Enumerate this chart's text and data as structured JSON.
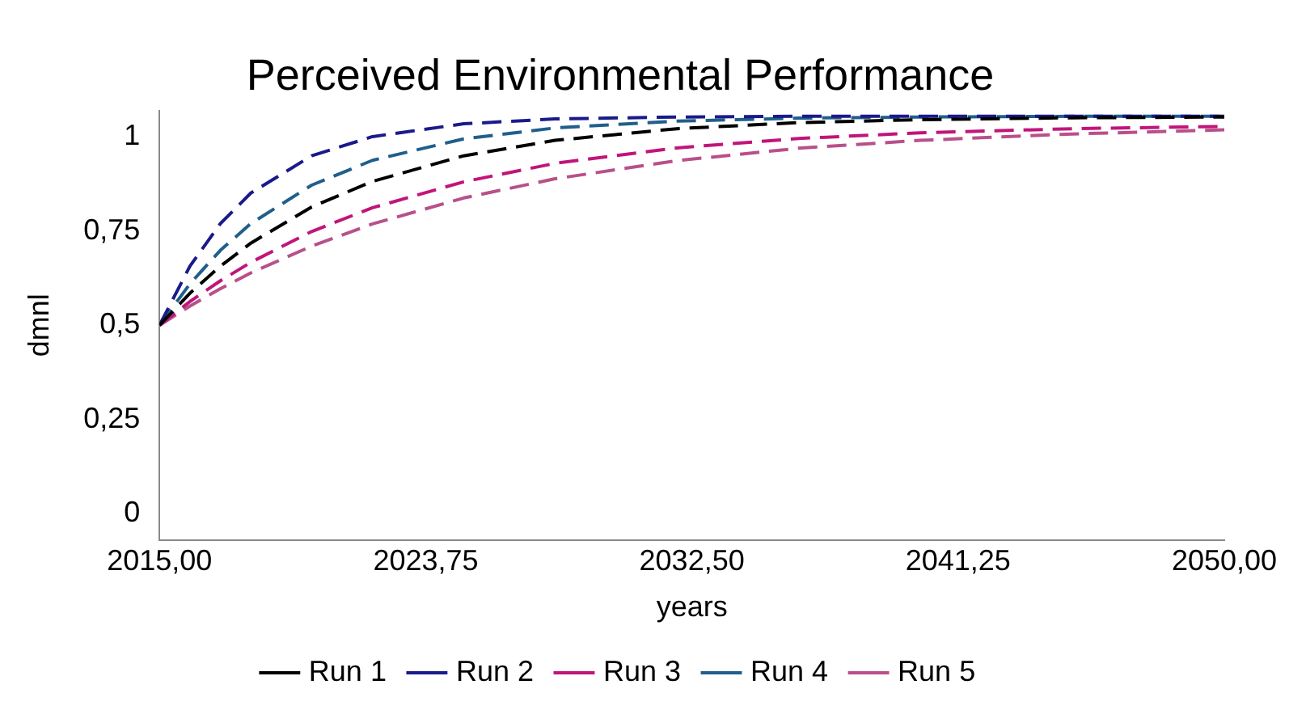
{
  "chart_data": {
    "type": "line",
    "title": "Perceived Environmental Performance",
    "xlabel": "years",
    "ylabel": "dmnl",
    "x": [
      2015,
      2016,
      2017,
      2018,
      2020,
      2022,
      2025,
      2028,
      2032,
      2036,
      2040,
      2045,
      2050
    ],
    "series": [
      {
        "name": "Run 1",
        "color": "#000000",
        "values": [
          0.5,
          0.585,
          0.657,
          0.718,
          0.814,
          0.882,
          0.95,
          0.991,
          1.022,
          1.038,
          1.046,
          1.051,
          1.053
        ]
      },
      {
        "name": "Run 2",
        "color": "#1a1a8c",
        "values": [
          0.5,
          0.657,
          0.77,
          0.851,
          0.95,
          1.001,
          1.035,
          1.048,
          1.053,
          1.055,
          1.055,
          1.055,
          1.055
        ]
      },
      {
        "name": "Run 3",
        "color": "#c0157a",
        "values": [
          0.5,
          0.563,
          0.618,
          0.667,
          0.749,
          0.812,
          0.881,
          0.93,
          0.971,
          0.996,
          1.011,
          1.022,
          1.028
        ]
      },
      {
        "name": "Run 4",
        "color": "#1f5f8b",
        "values": [
          0.5,
          0.61,
          0.699,
          0.77,
          0.872,
          0.938,
          0.995,
          1.024,
          1.042,
          1.05,
          1.053,
          1.055,
          1.055
        ]
      },
      {
        "name": "Run 5",
        "color": "#b8508a",
        "values": [
          0.5,
          0.551,
          0.597,
          0.639,
          0.71,
          0.769,
          0.838,
          0.889,
          0.937,
          0.97,
          0.991,
          1.008,
          1.019
        ]
      }
    ],
    "xlim": [
      2015,
      2050
    ],
    "xticks": [
      {
        "value": 2015,
        "label": "2015,00"
      },
      {
        "value": 2023.75,
        "label": "2023,75"
      },
      {
        "value": 2032.5,
        "label": "2032,50"
      },
      {
        "value": 2041.25,
        "label": "2041,25"
      },
      {
        "value": 2050,
        "label": "2050,00"
      }
    ],
    "ylim": [
      -0.07,
      1.07
    ],
    "yticks": [
      {
        "value": 0,
        "label": "0"
      },
      {
        "value": 0.25,
        "label": "0,25"
      },
      {
        "value": 0.5,
        "label": "0,5"
      },
      {
        "value": 0.75,
        "label": "0,75"
      },
      {
        "value": 1,
        "label": "1"
      }
    ],
    "grid": false,
    "legend": "bottom",
    "marker": "none",
    "line_style": "dashed"
  }
}
